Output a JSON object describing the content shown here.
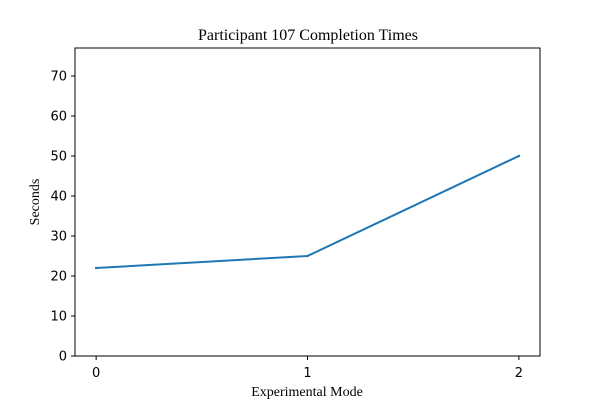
{
  "chart_data": {
    "type": "line",
    "title": "Participant 107 Completion Times",
    "xlabel": "Experimental Mode",
    "ylabel": "Seconds",
    "x": [
      0,
      1,
      2
    ],
    "series": [
      {
        "values": [
          22,
          25,
          50
        ],
        "color": "#1f77b4"
      }
    ],
    "xlim": [
      -0.1,
      2.1
    ],
    "ylim": [
      0,
      77
    ],
    "xticks": [
      "0",
      "1",
      "2"
    ],
    "yticks": [
      0,
      10,
      20,
      30,
      40,
      50,
      60,
      70
    ],
    "grid": false
  }
}
